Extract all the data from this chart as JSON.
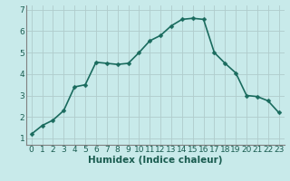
{
  "x": [
    0,
    1,
    2,
    3,
    4,
    5,
    6,
    7,
    8,
    9,
    10,
    11,
    12,
    13,
    14,
    15,
    16,
    17,
    18,
    19,
    20,
    21,
    22,
    23
  ],
  "y": [
    1.2,
    1.6,
    1.85,
    2.3,
    3.4,
    3.5,
    4.55,
    4.5,
    4.45,
    4.5,
    5.0,
    5.55,
    5.8,
    6.25,
    6.55,
    6.6,
    6.55,
    5.0,
    4.5,
    4.05,
    3.0,
    2.95,
    2.75,
    2.2
  ],
  "line_color": "#1a6b5e",
  "marker": "D",
  "marker_size": 2.5,
  "bg_color": "#c8eaea",
  "grid_color": "#b0cccc",
  "axis_color": "#808080",
  "xlabel": "Humidex (Indice chaleur)",
  "ylabel": "",
  "xlim": [
    -0.5,
    23.5
  ],
  "ylim": [
    0.7,
    7.2
  ],
  "xticks": [
    0,
    1,
    2,
    3,
    4,
    5,
    6,
    7,
    8,
    9,
    10,
    11,
    12,
    13,
    14,
    15,
    16,
    17,
    18,
    19,
    20,
    21,
    22,
    23
  ],
  "yticks": [
    1,
    2,
    3,
    4,
    5,
    6,
    7
  ],
  "xlabel_fontsize": 7.5,
  "tick_fontsize": 6.5,
  "line_width": 1.2,
  "label_color": "#1a5c50"
}
